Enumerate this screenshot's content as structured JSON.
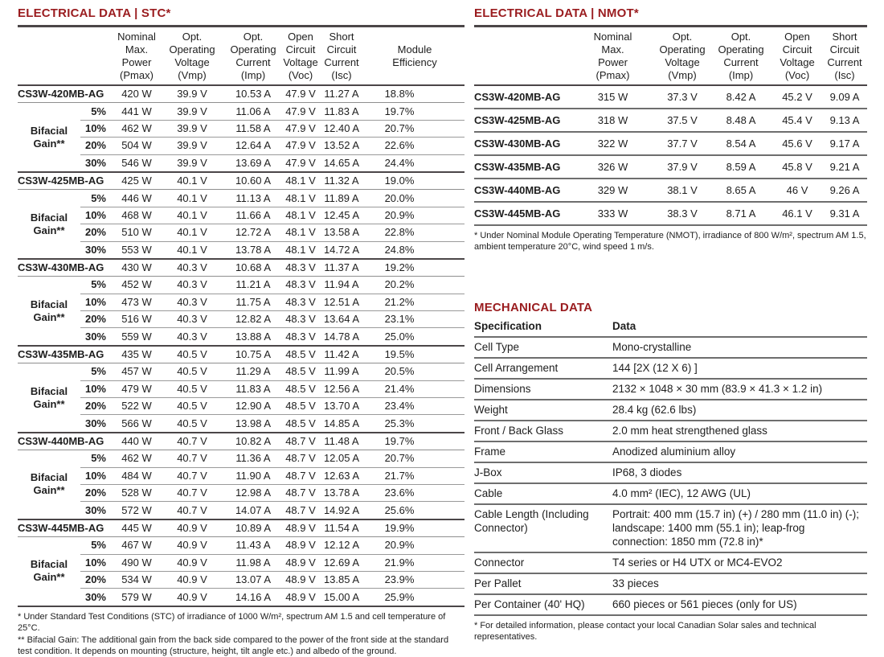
{
  "colors": {
    "heading_red": "#9a1c1f",
    "rule_dark": "#4b4648",
    "rule_mid": "#6e6e6e",
    "text": "#1e1e1e"
  },
  "stc": {
    "title": "ELECTRICAL DATA | STC*",
    "header": [
      "Nominal\nMax.\nPower\n(Pmax)",
      "Opt.\nOperating\nVoltage\n(Vmp)",
      "Opt.\nOperating\nCurrent\n(Imp)",
      "Open\nCircuit\nVoltage\n(Voc)",
      "Short\nCircuit\nCurrent\n(Isc)",
      "Module\nEfficiency"
    ],
    "bifacial_label": "Bifacial Gain**",
    "groups": [
      {
        "model": "CS3W-420MB-AG",
        "base": [
          "420 W",
          "39.9 V",
          "10.53 A",
          "47.9 V",
          "11.27 A",
          "18.8%"
        ],
        "gains": [
          {
            "label": "5%",
            "values": [
              "441 W",
              "39.9 V",
              "11.06 A",
              "47.9 V",
              "11.83 A",
              "19.7%"
            ]
          },
          {
            "label": "10%",
            "values": [
              "462 W",
              "39.9 V",
              "11.58 A",
              "47.9 V",
              "12.40 A",
              "20.7%"
            ]
          },
          {
            "label": "20%",
            "values": [
              "504 W",
              "39.9 V",
              "12.64 A",
              "47.9 V",
              "13.52 A",
              "22.6%"
            ]
          },
          {
            "label": "30%",
            "values": [
              "546 W",
              "39.9 V",
              "13.69 A",
              "47.9 V",
              "14.65 A",
              "24.4%"
            ]
          }
        ]
      },
      {
        "model": "CS3W-425MB-AG",
        "base": [
          "425 W",
          "40.1 V",
          "10.60 A",
          "48.1 V",
          "11.32 A",
          "19.0%"
        ],
        "gains": [
          {
            "label": "5%",
            "values": [
              "446 W",
              "40.1 V",
              "11.13 A",
              "48.1 V",
              "11.89 A",
              "20.0%"
            ]
          },
          {
            "label": "10%",
            "values": [
              "468 W",
              "40.1 V",
              "11.66 A",
              "48.1 V",
              "12.45 A",
              "20.9%"
            ]
          },
          {
            "label": "20%",
            "values": [
              "510 W",
              "40.1 V",
              "12.72 A",
              "48.1 V",
              "13.58 A",
              "22.8%"
            ]
          },
          {
            "label": "30%",
            "values": [
              "553 W",
              "40.1 V",
              "13.78 A",
              "48.1 V",
              "14.72 A",
              "24.8%"
            ]
          }
        ]
      },
      {
        "model": "CS3W-430MB-AG",
        "base": [
          "430 W",
          "40.3 V",
          "10.68 A",
          "48.3 V",
          "11.37 A",
          "19.2%"
        ],
        "gains": [
          {
            "label": "5%",
            "values": [
              "452 W",
              "40.3 V",
              "11.21 A",
              "48.3 V",
              "11.94 A",
              "20.2%"
            ]
          },
          {
            "label": "10%",
            "values": [
              "473 W",
              "40.3 V",
              "11.75 A",
              "48.3 V",
              "12.51 A",
              "21.2%"
            ]
          },
          {
            "label": "20%",
            "values": [
              "516 W",
              "40.3 V",
              "12.82 A",
              "48.3 V",
              "13.64 A",
              "23.1%"
            ]
          },
          {
            "label": "30%",
            "values": [
              "559 W",
              "40.3 V",
              "13.88 A",
              "48.3 V",
              "14.78 A",
              "25.0%"
            ]
          }
        ]
      },
      {
        "model": "CS3W-435MB-AG",
        "base": [
          "435 W",
          "40.5 V",
          "10.75 A",
          "48.5 V",
          "11.42 A",
          "19.5%"
        ],
        "gains": [
          {
            "label": "5%",
            "values": [
              "457 W",
              "40.5 V",
              "11.29 A",
              "48.5 V",
              "11.99 A",
              "20.5%"
            ]
          },
          {
            "label": "10%",
            "values": [
              "479 W",
              "40.5 V",
              "11.83 A",
              "48.5 V",
              "12.56 A",
              "21.4%"
            ]
          },
          {
            "label": "20%",
            "values": [
              "522 W",
              "40.5 V",
              "12.90 A",
              "48.5 V",
              "13.70 A",
              "23.4%"
            ]
          },
          {
            "label": "30%",
            "values": [
              "566 W",
              "40.5 V",
              "13.98 A",
              "48.5 V",
              "14.85 A",
              "25.3%"
            ]
          }
        ]
      },
      {
        "model": "CS3W-440MB-AG",
        "base": [
          "440 W",
          "40.7 V",
          "10.82 A",
          "48.7 V",
          "11.48 A",
          "19.7%"
        ],
        "gains": [
          {
            "label": "5%",
            "values": [
              "462 W",
              "40.7 V",
              "11.36 A",
              "48.7 V",
              "12.05 A",
              "20.7%"
            ]
          },
          {
            "label": "10%",
            "values": [
              "484 W",
              "40.7 V",
              "11.90 A",
              "48.7 V",
              "12.63 A",
              "21.7%"
            ]
          },
          {
            "label": "20%",
            "values": [
              "528 W",
              "40.7 V",
              "12.98 A",
              "48.7 V",
              "13.78 A",
              "23.6%"
            ]
          },
          {
            "label": "30%",
            "values": [
              "572 W",
              "40.7 V",
              "14.07 A",
              "48.7 V",
              "14.92 A",
              "25.6%"
            ]
          }
        ]
      },
      {
        "model": "CS3W-445MB-AG",
        "base": [
          "445 W",
          "40.9 V",
          "10.89 A",
          "48.9 V",
          "11.54 A",
          "19.9%"
        ],
        "gains": [
          {
            "label": "5%",
            "values": [
              "467 W",
              "40.9 V",
              "11.43 A",
              "48.9 V",
              "12.12 A",
              "20.9%"
            ]
          },
          {
            "label": "10%",
            "values": [
              "490 W",
              "40.9 V",
              "11.98 A",
              "48.9 V",
              "12.69 A",
              "21.9%"
            ]
          },
          {
            "label": "20%",
            "values": [
              "534 W",
              "40.9 V",
              "13.07 A",
              "48.9 V",
              "13.85 A",
              "23.9%"
            ]
          },
          {
            "label": "30%",
            "values": [
              "579 W",
              "40.9 V",
              "14.16 A",
              "48.9 V",
              "15.00 A",
              "25.9%"
            ]
          }
        ]
      }
    ],
    "footnote1": "* Under Standard Test Conditions (STC) of irradiance of 1000 W/m², spectrum AM 1.5 and cell temperature of 25°C.",
    "footnote2": "** Bifacial Gain: The additional gain from the back side compared to the power of the front side at the standard test condition. It depends on mounting (structure, height, tilt angle etc.) and albedo of the ground."
  },
  "nmot": {
    "title": "ELECTRICAL DATA | NMOT*",
    "header": [
      "Nominal\nMax.\nPower\n(Pmax)",
      "Opt.\nOperating\nVoltage\n(Vmp)",
      "Opt.\nOperating\nCurrent\n(Imp)",
      "Open\nCircuit\nVoltage\n(Voc)",
      "Short\nCircuit\nCurrent\n(Isc)"
    ],
    "rows": [
      {
        "model": "CS3W-420MB-AG",
        "values": [
          "315 W",
          "37.3 V",
          "8.42 A",
          "45.2 V",
          "9.09 A"
        ]
      },
      {
        "model": "CS3W-425MB-AG",
        "values": [
          "318 W",
          "37.5 V",
          "8.48 A",
          "45.4 V",
          "9.13 A"
        ]
      },
      {
        "model": "CS3W-430MB-AG",
        "values": [
          "322 W",
          "37.7 V",
          "8.54 A",
          "45.6 V",
          "9.17 A"
        ]
      },
      {
        "model": "CS3W-435MB-AG",
        "values": [
          "326 W",
          "37.9 V",
          "8.59 A",
          "45.8 V",
          "9.21 A"
        ]
      },
      {
        "model": "CS3W-440MB-AG",
        "values": [
          "329 W",
          "38.1 V",
          "8.65 A",
          "46 V",
          "9.26 A"
        ]
      },
      {
        "model": "CS3W-445MB-AG",
        "values": [
          "333 W",
          "38.3 V",
          "8.71 A",
          "46.1 V",
          "9.31 A"
        ]
      }
    ],
    "footnote": "* Under Nominal Module Operating Temperature (NMOT), irradiance of 800 W/m², spectrum AM 1.5, ambient temperature 20°C, wind speed 1 m/s."
  },
  "mechanical": {
    "title": "MECHANICAL DATA",
    "header": {
      "spec": "Specification",
      "data": "Data"
    },
    "rows": [
      [
        "Cell Type",
        "Mono-crystalline"
      ],
      [
        "Cell Arrangement",
        "144 [2X (12 X 6) ]"
      ],
      [
        "Dimensions",
        "2132 × 1048 × 30 mm (83.9 × 41.3 × 1.2 in)"
      ],
      [
        "Weight",
        "28.4 kg (62.6 lbs)"
      ],
      [
        "Front / Back Glass",
        "2.0 mm heat strengthened glass"
      ],
      [
        "Frame",
        "Anodized aluminium alloy"
      ],
      [
        "J-Box",
        "IP68, 3 diodes"
      ],
      [
        "Cable",
        "4.0 mm² (IEC), 12 AWG (UL)"
      ],
      [
        "Cable Length (Including Connector)",
        "Portrait: 400 mm (15.7 in) (+) / 280 mm (11.0 in) (-); landscape: 1400 mm (55.1 in); leap-frog connection: 1850 mm (72.8 in)*"
      ],
      [
        "Connector",
        "T4 series or H4 UTX or MC4-EVO2"
      ],
      [
        "Per Pallet",
        "33 pieces"
      ],
      [
        "Per Container (40' HQ)",
        "660 pieces or 561 pieces (only for US)"
      ]
    ],
    "footnote": "* For detailed information, please contact your local Canadian Solar sales and technical representatives."
  }
}
